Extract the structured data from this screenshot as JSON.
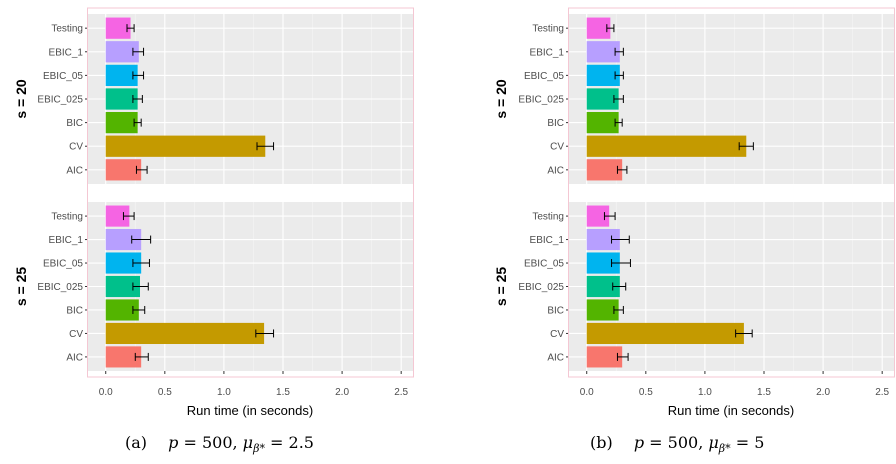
{
  "figure": {
    "panel_labels": [
      "(a)",
      "(b)"
    ],
    "captions": [
      {
        "p": "p",
        "eq1": " = 500, ",
        "mu": "μ",
        "sub": "β*",
        "eq2": " = 2.5"
      },
      {
        "p": "p",
        "eq1": " = 500, ",
        "mu": "μ",
        "sub": "β*",
        "eq2": " = 5"
      }
    ]
  },
  "chart_data": [
    {
      "type": "bar",
      "orientation": "horizontal",
      "xlabel": "Run time (in seconds)",
      "xlim": [
        -0.15,
        2.6
      ],
      "xticks": [
        0.0,
        0.5,
        1.0,
        1.5,
        2.0,
        2.5
      ],
      "xtick_labels": [
        "0.0",
        "0.5",
        "1.0",
        "1.5",
        "2.0",
        "2.5"
      ],
      "grid": true,
      "categories": [
        "Testing",
        "EBIC_1",
        "EBIC_05",
        "EBIC_025",
        "BIC",
        "CV",
        "AIC"
      ],
      "colors": [
        "#F564E3",
        "#B79FFF",
        "#00B4EF",
        "#00C08B",
        "#53B400",
        "#C49A00",
        "#F8766D"
      ],
      "facets": [
        {
          "label": "s = 20",
          "values": [
            0.21,
            0.28,
            0.27,
            0.27,
            0.27,
            1.35,
            0.3
          ],
          "err_low": [
            0.18,
            0.23,
            0.23,
            0.23,
            0.24,
            1.28,
            0.26
          ],
          "err_high": [
            0.24,
            0.32,
            0.32,
            0.31,
            0.3,
            1.42,
            0.35
          ]
        },
        {
          "label": "s = 25",
          "values": [
            0.2,
            0.3,
            0.3,
            0.29,
            0.28,
            1.34,
            0.3
          ],
          "err_low": [
            0.15,
            0.22,
            0.23,
            0.23,
            0.23,
            1.27,
            0.25
          ],
          "err_high": [
            0.24,
            0.38,
            0.37,
            0.36,
            0.33,
            1.42,
            0.36
          ]
        }
      ]
    },
    {
      "type": "bar",
      "orientation": "horizontal",
      "xlabel": "Run time (in seconds)",
      "xlim": [
        -0.15,
        2.6
      ],
      "xticks": [
        0.0,
        0.5,
        1.0,
        1.5,
        2.0,
        2.5
      ],
      "xtick_labels": [
        "0.0",
        "0.5",
        "1.0",
        "1.5",
        "2.0",
        "2.5"
      ],
      "grid": true,
      "categories": [
        "Testing",
        "EBIC_1",
        "EBIC_05",
        "EBIC_025",
        "BIC",
        "CV",
        "AIC"
      ],
      "colors": [
        "#F564E3",
        "#B79FFF",
        "#00B4EF",
        "#00C08B",
        "#53B400",
        "#C49A00",
        "#F8766D"
      ],
      "facets": [
        {
          "label": "s = 20",
          "values": [
            0.2,
            0.28,
            0.28,
            0.27,
            0.27,
            1.35,
            0.3
          ],
          "err_low": [
            0.17,
            0.24,
            0.24,
            0.23,
            0.24,
            1.29,
            0.26
          ],
          "err_high": [
            0.23,
            0.31,
            0.31,
            0.31,
            0.3,
            1.41,
            0.34
          ]
        },
        {
          "label": "s = 25",
          "values": [
            0.19,
            0.28,
            0.28,
            0.28,
            0.27,
            1.33,
            0.3
          ],
          "err_low": [
            0.15,
            0.21,
            0.21,
            0.22,
            0.23,
            1.26,
            0.26
          ],
          "err_high": [
            0.24,
            0.36,
            0.37,
            0.33,
            0.31,
            1.4,
            0.35
          ]
        }
      ]
    }
  ]
}
